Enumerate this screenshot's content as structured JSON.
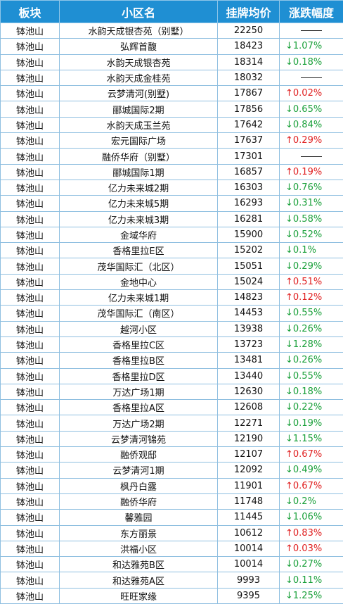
{
  "table": {
    "headers": [
      "板块",
      "小区名",
      "挂牌均价",
      "涨跌幅度"
    ],
    "rows": [
      {
        "area": "钵池山",
        "name": "水韵天成银杏苑（别墅）",
        "price": "22250",
        "dir": "none",
        "change": ""
      },
      {
        "area": "钵池山",
        "name": "弘辉首馥",
        "price": "18423",
        "dir": "down",
        "change": "1.07%"
      },
      {
        "area": "钵池山",
        "name": "水韵天成银杏苑",
        "price": "18314",
        "dir": "down",
        "change": "0.18%"
      },
      {
        "area": "钵池山",
        "name": "水韵天成金桂苑",
        "price": "18032",
        "dir": "none",
        "change": ""
      },
      {
        "area": "钵池山",
        "name": "云梦清河(别墅)",
        "price": "17867",
        "dir": "up",
        "change": "0.02%"
      },
      {
        "area": "钵池山",
        "name": "郦城国际2期",
        "price": "17856",
        "dir": "down",
        "change": "0.65%"
      },
      {
        "area": "钵池山",
        "name": "水韵天成玉兰苑",
        "price": "17642",
        "dir": "down",
        "change": "0.84%"
      },
      {
        "area": "钵池山",
        "name": "宏元国际广场",
        "price": "17637",
        "dir": "up",
        "change": "0.29%"
      },
      {
        "area": "钵池山",
        "name": "融侨华府（别墅）",
        "price": "17301",
        "dir": "none",
        "change": ""
      },
      {
        "area": "钵池山",
        "name": "郦城国际1期",
        "price": "16857",
        "dir": "up",
        "change": "0.19%"
      },
      {
        "area": "钵池山",
        "name": "亿力未来城2期",
        "price": "16303",
        "dir": "down",
        "change": "0.76%"
      },
      {
        "area": "钵池山",
        "name": "亿力未来城5期",
        "price": "16293",
        "dir": "down",
        "change": "0.31%"
      },
      {
        "area": "钵池山",
        "name": "亿力未来城3期",
        "price": "16281",
        "dir": "down",
        "change": "0.58%"
      },
      {
        "area": "钵池山",
        "name": "金域华府",
        "price": "15900",
        "dir": "down",
        "change": "0.52%"
      },
      {
        "area": "钵池山",
        "name": "香格里拉E区",
        "price": "15202",
        "dir": "down",
        "change": "0.1%"
      },
      {
        "area": "钵池山",
        "name": "茂华国际汇（北区）",
        "price": "15051",
        "dir": "down",
        "change": "0.29%"
      },
      {
        "area": "钵池山",
        "name": "金地中心",
        "price": "15024",
        "dir": "up",
        "change": "0.51%"
      },
      {
        "area": "钵池山",
        "name": "亿力未来城1期",
        "price": "14823",
        "dir": "up",
        "change": "0.12%"
      },
      {
        "area": "钵池山",
        "name": "茂华国际汇（南区）",
        "price": "14453",
        "dir": "down",
        "change": "0.55%"
      },
      {
        "area": "钵池山",
        "name": "越河小区",
        "price": "13938",
        "dir": "down",
        "change": "0.26%"
      },
      {
        "area": "钵池山",
        "name": "香格里拉C区",
        "price": "13723",
        "dir": "down",
        "change": "1.28%"
      },
      {
        "area": "钵池山",
        "name": "香格里拉B区",
        "price": "13481",
        "dir": "down",
        "change": "0.26%"
      },
      {
        "area": "钵池山",
        "name": "香格里拉D区",
        "price": "13440",
        "dir": "down",
        "change": "0.55%"
      },
      {
        "area": "钵池山",
        "name": "万达广场1期",
        "price": "12630",
        "dir": "down",
        "change": "0.18%"
      },
      {
        "area": "钵池山",
        "name": "香格里拉A区",
        "price": "12608",
        "dir": "down",
        "change": "0.22%"
      },
      {
        "area": "钵池山",
        "name": "万达广场2期",
        "price": "12271",
        "dir": "down",
        "change": "0.19%"
      },
      {
        "area": "钵池山",
        "name": "云梦清河锦苑",
        "price": "12190",
        "dir": "down",
        "change": "1.15%"
      },
      {
        "area": "钵池山",
        "name": "融侨观邸",
        "price": "12107",
        "dir": "up",
        "change": "0.67%"
      },
      {
        "area": "钵池山",
        "name": "云梦清河1期",
        "price": "12092",
        "dir": "down",
        "change": "0.49%"
      },
      {
        "area": "钵池山",
        "name": "枫丹白露",
        "price": "11901",
        "dir": "up",
        "change": "0.67%"
      },
      {
        "area": "钵池山",
        "name": "融侨华府",
        "price": "11748",
        "dir": "down",
        "change": "0.2%"
      },
      {
        "area": "钵池山",
        "name": "馨雅园",
        "price": "11445",
        "dir": "down",
        "change": "1.06%"
      },
      {
        "area": "钵池山",
        "name": "东方丽景",
        "price": "10612",
        "dir": "up",
        "change": "0.83%"
      },
      {
        "area": "钵池山",
        "name": "洪福小区",
        "price": "10014",
        "dir": "up",
        "change": "0.03%"
      },
      {
        "area": "钵池山",
        "name": "和达雅苑B区",
        "price": "10014",
        "dir": "down",
        "change": "0.27%"
      },
      {
        "area": "钵池山",
        "name": "和达雅苑A区",
        "price": "9993",
        "dir": "down",
        "change": "0.11%"
      },
      {
        "area": "钵池山",
        "name": "旺旺家缘",
        "price": "9395",
        "dir": "down",
        "change": "1.25%"
      }
    ]
  },
  "colors": {
    "header_bg": "#1f8fd3",
    "up": "#e02020",
    "down": "#1aa03a",
    "grid": "#8fbfe0"
  },
  "icons": {
    "up": "arrow-up-icon",
    "down": "arrow-down-icon",
    "none": "dash-icon"
  }
}
